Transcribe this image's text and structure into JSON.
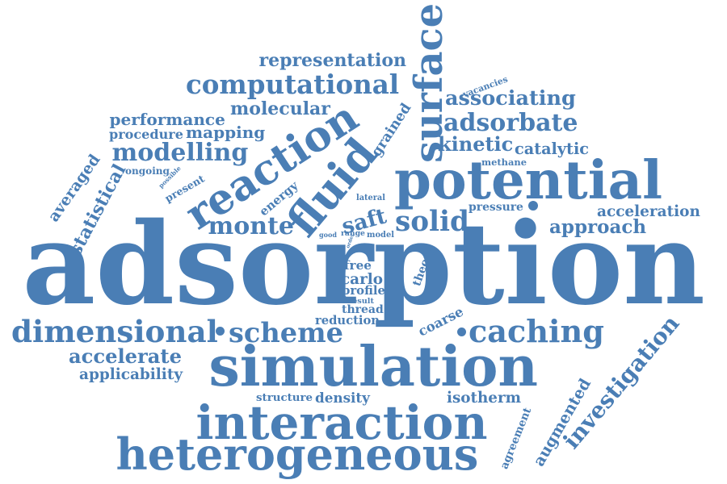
{
  "color": "#4a7eb5",
  "words": [
    {
      "key": "adsorption",
      "text": "adsorption"
    },
    {
      "key": "simulation",
      "text": "simulation"
    },
    {
      "key": "potential",
      "text": "potential"
    },
    {
      "key": "interaction",
      "text": "interaction"
    },
    {
      "key": "heterogeneous",
      "text": "heterogeneous"
    },
    {
      "key": "reaction",
      "text": "reaction"
    },
    {
      "key": "surface",
      "text": "surface"
    },
    {
      "key": "fluid",
      "text": "fluid"
    },
    {
      "key": "computational",
      "text": "computational"
    },
    {
      "key": "dimensional",
      "text": "dimensional"
    },
    {
      "key": "scheme",
      "text": "scheme"
    },
    {
      "key": "caching",
      "text": "caching"
    },
    {
      "key": "adsorbate",
      "text": "adsorbate"
    },
    {
      "key": "associating",
      "text": "associating"
    },
    {
      "key": "representation",
      "text": "representation"
    },
    {
      "key": "molecular",
      "text": "molecular"
    },
    {
      "key": "performance",
      "text": "performance"
    },
    {
      "key": "procedure",
      "text": "procedure"
    },
    {
      "key": "mapping",
      "text": "mapping"
    },
    {
      "key": "modelling",
      "text": "modelling"
    },
    {
      "key": "ongoing",
      "text": "ongoing"
    },
    {
      "key": "possible",
      "text": "possible"
    },
    {
      "key": "present",
      "text": "present"
    },
    {
      "key": "energy",
      "text": "energy"
    },
    {
      "key": "grained",
      "text": "grained"
    },
    {
      "key": "kinetic",
      "text": "kinetic"
    },
    {
      "key": "catalytic",
      "text": "catalytic"
    },
    {
      "key": "methane",
      "text": "methane"
    },
    {
      "key": "vacancies",
      "text": "vacancies"
    },
    {
      "key": "averaged",
      "text": "averaged"
    },
    {
      "key": "statistical",
      "text": "statistical"
    },
    {
      "key": "monte",
      "text": "monte"
    },
    {
      "key": "saft",
      "text": "saft"
    },
    {
      "key": "solid",
      "text": "solid"
    },
    {
      "key": "lateral",
      "text": "lateral"
    },
    {
      "key": "range",
      "text": "range"
    },
    {
      "key": "good",
      "text": "good"
    },
    {
      "key": "model",
      "text": "model"
    },
    {
      "key": "order",
      "text": "order"
    },
    {
      "key": "pressure",
      "text": "pressure"
    },
    {
      "key": "acceleration",
      "text": "acceleration"
    },
    {
      "key": "approach",
      "text": "approach"
    },
    {
      "key": "free",
      "text": "free"
    },
    {
      "key": "carlo",
      "text": "carlo"
    },
    {
      "key": "profile",
      "text": "profile"
    },
    {
      "key": "result",
      "text": "result"
    },
    {
      "key": "thread",
      "text": "thread"
    },
    {
      "key": "theory",
      "text": "theory"
    },
    {
      "key": "reduction",
      "text": "reduction"
    },
    {
      "key": "coarse",
      "text": "coarse"
    },
    {
      "key": "accelerate",
      "text": "accelerate"
    },
    {
      "key": "applicability",
      "text": "applicability"
    },
    {
      "key": "investigation",
      "text": "investigation"
    },
    {
      "key": "structure",
      "text": "structure"
    },
    {
      "key": "density",
      "text": "density"
    },
    {
      "key": "isotherm",
      "text": "isotherm"
    },
    {
      "key": "augmented",
      "text": "augmented"
    },
    {
      "key": "agreement",
      "text": "agreement"
    }
  ]
}
